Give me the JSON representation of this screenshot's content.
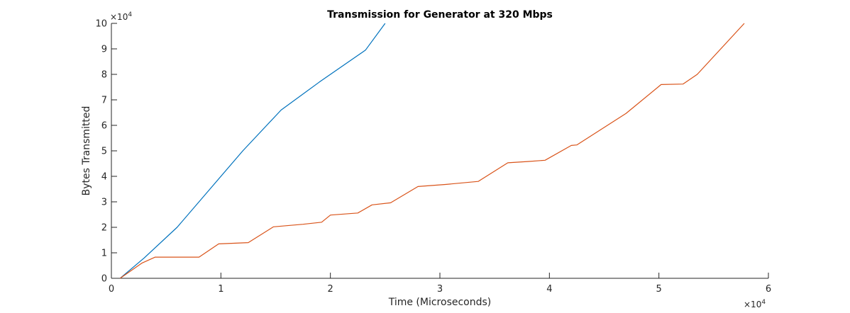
{
  "chart_data": {
    "type": "line",
    "title": "Transmission for Generator at 320 Mbps",
    "xlabel": "Time (Microseconds)",
    "ylabel": "Bytes Transmitted",
    "xlim": [
      0,
      60000
    ],
    "ylim": [
      0,
      100000
    ],
    "x_ticks": [
      0,
      10000,
      20000,
      30000,
      40000,
      50000,
      60000
    ],
    "x_tick_labels": [
      "0",
      "1",
      "2",
      "3",
      "4",
      "5",
      "6"
    ],
    "y_ticks": [
      0,
      10000,
      20000,
      30000,
      40000,
      50000,
      60000,
      70000,
      80000,
      90000,
      100000
    ],
    "y_tick_labels": [
      "0",
      "1",
      "2",
      "3",
      "4",
      "5",
      "6",
      "7",
      "8",
      "9",
      "10"
    ],
    "x_exponent": {
      "base": "×10",
      "power": "4"
    },
    "y_exponent": {
      "base": "×10",
      "power": "4"
    },
    "grid": false,
    "legend": null,
    "series": [
      {
        "color": "#0072BD",
        "x": [
          800,
          3000,
          6000,
          9000,
          12000,
          15500,
          19000,
          23200,
          25000
        ],
        "y": [
          0,
          8000,
          20000,
          35000,
          50000,
          66000,
          77000,
          89500,
          100000
        ]
      },
      {
        "color": "#D95319",
        "x": [
          800,
          2800,
          4000,
          8000,
          9800,
          12500,
          14800,
          17500,
          19200,
          20000,
          22500,
          23800,
          25500,
          28000,
          30500,
          33500,
          36200,
          38000,
          39600,
          42000,
          42500,
          47000,
          50200,
          52200,
          53500,
          57800
        ],
        "y": [
          0,
          6000,
          8300,
          8300,
          13500,
          14000,
          20200,
          21200,
          22000,
          24800,
          25600,
          28800,
          29600,
          36000,
          36800,
          38000,
          45300,
          45800,
          46300,
          52100,
          52300,
          64700,
          76000,
          76200,
          80000,
          100000
        ]
      }
    ]
  }
}
